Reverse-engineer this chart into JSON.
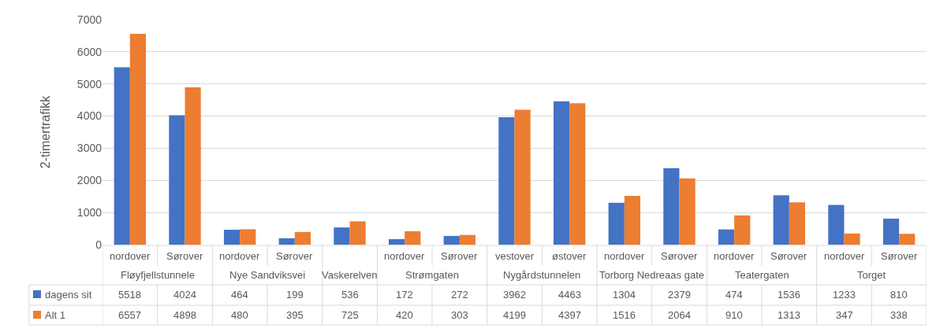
{
  "chart_data": {
    "type": "bar",
    "ylabel": "2-timertrafikk",
    "categories": [
      "nordover",
      "Sørover",
      "nordover",
      "Sørover",
      null,
      "nordover",
      "Sørover",
      "vestover",
      "østover",
      "nordover",
      "Sørover",
      "nordover",
      "Sørover",
      "nordover",
      "Sørover"
    ],
    "annotations": [
      "Fløyfjellstunnele",
      "Nye Sandviksvei",
      "Vaskerelven",
      "Strømgaten",
      "Nygårdstunnelen",
      "Torborg Nedreaas gate",
      "Teatergaten",
      "Torget"
    ],
    "series": [
      {
        "name": "dagens sit",
        "color": "#4472c4",
        "values": [
          5518,
          4024,
          464,
          199,
          536,
          172,
          272,
          3962,
          4463,
          1304,
          2379,
          474,
          1536,
          1233,
          810
        ]
      },
      {
        "name": "Alt 1",
        "color": "#ed7d31",
        "values": [
          6557,
          4898,
          480,
          395,
          725,
          420,
          303,
          4199,
          4397,
          1516,
          2064,
          910,
          1313,
          347,
          338
        ]
      }
    ],
    "ylim": [
      0,
      7000
    ],
    "yticks": [
      0,
      1000,
      2000,
      3000,
      4000,
      5000,
      6000,
      7000
    ],
    "grid": "y",
    "data_labels": true,
    "legend": "bottom left"
  }
}
